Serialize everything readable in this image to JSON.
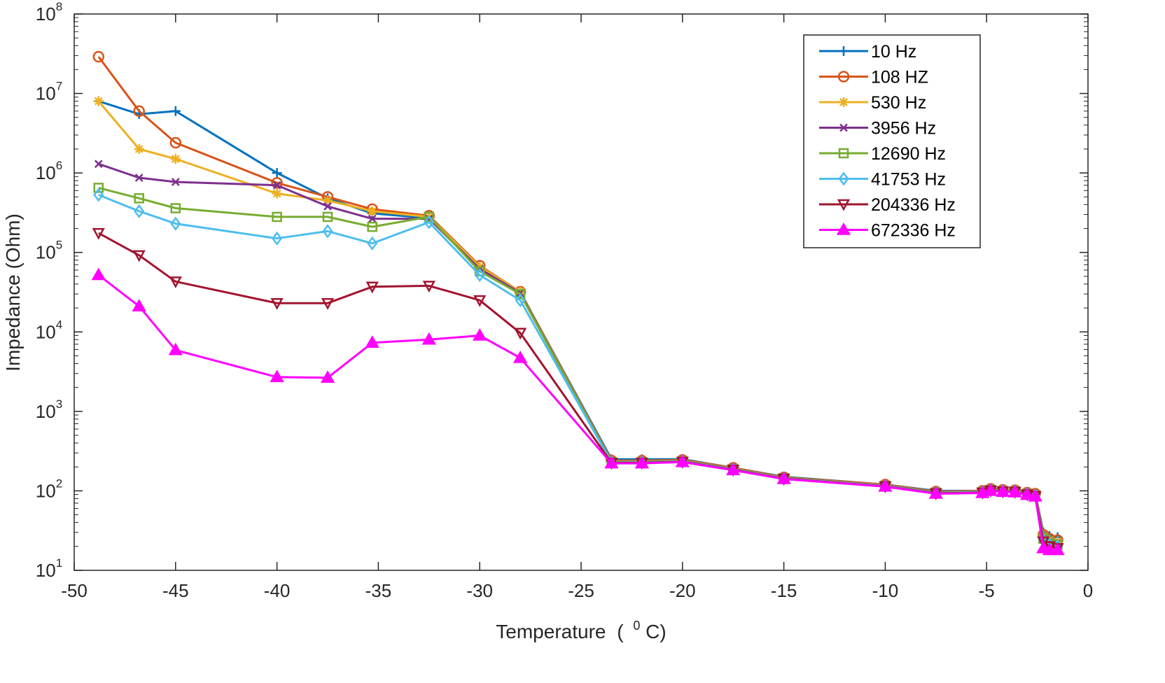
{
  "chart_data": {
    "type": "line",
    "title": "",
    "xlabel": "Temperature",
    "xlabel_unit_prefix": "(",
    "xlabel_unit_sup": "0",
    "xlabel_unit_suffix": " C)",
    "ylabel": "Impedance (Ohm)",
    "xlim": [
      -50,
      0
    ],
    "ylim": [
      10,
      100000000
    ],
    "yscale": "log",
    "x_ticks": [
      "-50",
      "-45",
      "-40",
      "-35",
      "-30",
      "-25",
      "-20",
      "-15",
      "-10",
      "-5",
      "0"
    ],
    "y_ticks": [
      {
        "base": "10",
        "exp": "1"
      },
      {
        "base": "10",
        "exp": "2"
      },
      {
        "base": "10",
        "exp": "3"
      },
      {
        "base": "10",
        "exp": "4"
      },
      {
        "base": "10",
        "exp": "5"
      },
      {
        "base": "10",
        "exp": "6"
      },
      {
        "base": "10",
        "exp": "7"
      },
      {
        "base": "10",
        "exp": "8"
      }
    ],
    "legend_position": "top-right",
    "x": [
      -48.8,
      -46.8,
      -45,
      -40,
      -37.5,
      -35.3,
      -32.5,
      -30,
      -28,
      -23.5,
      -22,
      -20,
      -17.5,
      -15,
      -10,
      -7.5,
      -5.2,
      -4.8,
      -4.2,
      -3.6,
      -3,
      -2.6,
      -2.2,
      -1.9,
      -1.5
    ],
    "series": [
      {
        "name": "10 Hz",
        "color": "#0072BD",
        "marker": "plus",
        "values": [
          8000000,
          5500000,
          6000000,
          1000000,
          480000,
          310000,
          270000,
          65000,
          32000,
          250,
          250,
          250,
          195,
          150,
          120,
          100,
          100,
          108,
          104,
          102,
          96,
          94,
          30,
          27,
          26
        ]
      },
      {
        "name": "108 HZ",
        "color": "#D95319",
        "marker": "circle",
        "values": [
          29000000,
          6000000,
          2400000,
          750000,
          500000,
          350000,
          290000,
          68000,
          32000,
          240,
          240,
          245,
          195,
          148,
          120,
          98,
          100,
          106,
          103,
          102,
          95,
          92,
          28,
          25,
          24
        ]
      },
      {
        "name": "530 Hz",
        "color": "#EDB120",
        "marker": "asterisk",
        "values": [
          8000000,
          2000000,
          1500000,
          550000,
          450000,
          330000,
          280000,
          66000,
          32000,
          235,
          235,
          240,
          192,
          146,
          118,
          97,
          99,
          105,
          102,
          101,
          94,
          90,
          27,
          24,
          23
        ]
      },
      {
        "name": "3956 Hz",
        "color": "#7E2F8E",
        "marker": "x",
        "values": [
          1300000,
          870000,
          770000,
          700000,
          380000,
          265000,
          265000,
          62000,
          31000,
          232,
          232,
          238,
          190,
          145,
          117,
          96,
          98,
          104,
          101,
          100,
          93,
          89,
          26,
          23,
          22
        ]
      },
      {
        "name": "12690 Hz",
        "color": "#77AC30",
        "marker": "square",
        "values": [
          650000,
          480000,
          360000,
          280000,
          280000,
          210000,
          280000,
          58000,
          30000,
          230,
          230,
          236,
          188,
          144,
          116,
          95,
          97,
          103,
          100,
          99,
          92,
          88,
          25,
          22,
          21
        ]
      },
      {
        "name": "41753 Hz",
        "color": "#4DBEEE",
        "marker": "diamond",
        "values": [
          530000,
          330000,
          230000,
          150000,
          185000,
          130000,
          240000,
          52000,
          25000,
          228,
          228,
          234,
          186,
          143,
          115,
          94,
          96,
          102,
          99,
          98,
          91,
          87,
          24,
          21,
          20
        ]
      },
      {
        "name": "204336 Hz",
        "color": "#A2142F",
        "marker": "triangle-down",
        "values": [
          175000,
          92000,
          43000,
          23000,
          23000,
          37000,
          38000,
          25000,
          9700,
          225,
          225,
          232,
          184,
          142,
          114,
          93,
          95,
          101,
          98,
          97,
          90,
          86,
          23,
          20,
          19
        ]
      },
      {
        "name": "672336 Hz",
        "color": "#FF00FF",
        "marker": "triangle-up",
        "values": [
          52000,
          21000,
          5900,
          2700,
          2650,
          7300,
          8000,
          9000,
          4700,
          222,
          222,
          230,
          182,
          141,
          113,
          92,
          94,
          100,
          97,
          96,
          89,
          85,
          19,
          18,
          18
        ]
      }
    ]
  }
}
